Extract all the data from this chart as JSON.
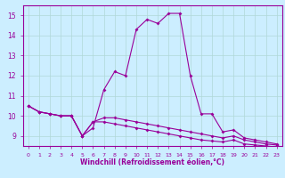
{
  "xlabel": "Windchill (Refroidissement éolien,°C)",
  "bg_color": "#cceeff",
  "line_color": "#990099",
  "x_hours": [
    0,
    1,
    2,
    3,
    4,
    5,
    6,
    7,
    8,
    9,
    10,
    11,
    12,
    13,
    14,
    15,
    16,
    17,
    18,
    19,
    20,
    21,
    22,
    23
  ],
  "temp_line": [
    10.5,
    10.2,
    10.1,
    10.0,
    10.0,
    9.0,
    9.4,
    11.3,
    12.2,
    12.0,
    14.3,
    14.8,
    14.6,
    15.1,
    15.1,
    12.0,
    10.1,
    10.1,
    9.2,
    9.3,
    8.9,
    8.8,
    8.7,
    8.6
  ],
  "windchill_line": [
    10.5,
    10.2,
    10.1,
    10.0,
    10.0,
    9.0,
    9.7,
    9.9,
    9.9,
    9.8,
    9.7,
    9.6,
    9.5,
    9.4,
    9.3,
    9.2,
    9.1,
    9.0,
    8.9,
    9.0,
    8.8,
    8.7,
    8.6,
    8.55
  ],
  "line2": [
    10.5,
    10.2,
    10.1,
    10.0,
    10.0,
    9.0,
    9.7,
    9.7,
    9.6,
    9.5,
    9.4,
    9.3,
    9.2,
    9.1,
    9.0,
    8.9,
    8.8,
    8.75,
    8.7,
    8.8,
    8.6,
    8.55,
    8.5,
    8.45
  ],
  "ylim": [
    8.5,
    15.5
  ],
  "yticks": [
    9,
    10,
    11,
    12,
    13,
    14,
    15
  ],
  "xticks": [
    0,
    1,
    2,
    3,
    4,
    5,
    6,
    7,
    8,
    9,
    10,
    11,
    12,
    13,
    14,
    15,
    16,
    17,
    18,
    19,
    20,
    21,
    22,
    23
  ]
}
